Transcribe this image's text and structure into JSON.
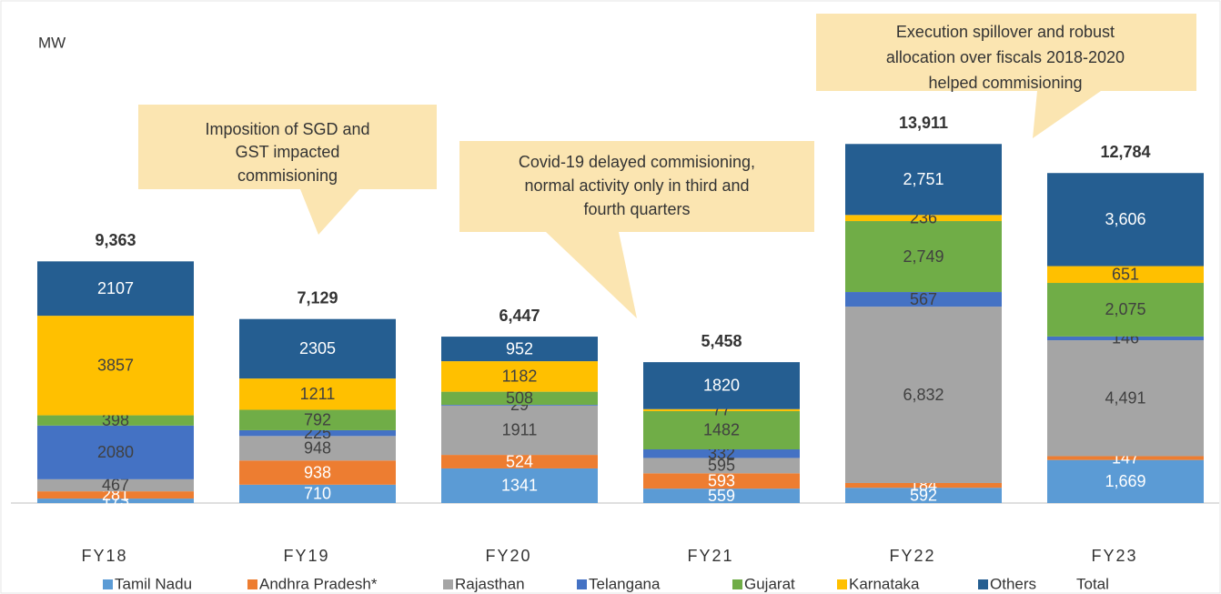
{
  "chart_data": {
    "type": "stacked_bar",
    "ylabel": "MW",
    "categories": [
      "FY18",
      "FY19",
      "FY20",
      "FY21",
      "FY22",
      "FY23"
    ],
    "ylim": [
      0,
      16000
    ],
    "series": [
      {
        "name": "Tamil Nadu",
        "color": "#5b9bd5",
        "values": [
          173,
          710,
          1341,
          559,
          592,
          1669
        ],
        "value_labels": [
          "173",
          "710",
          "1341",
          "559",
          "592",
          "1,669"
        ]
      },
      {
        "name": "Andhra Pradesh*",
        "color": "#ed7d31",
        "values": [
          281,
          938,
          524,
          593,
          184,
          147
        ],
        "value_labels": [
          "281",
          "938",
          "524",
          "593",
          "184",
          "147"
        ]
      },
      {
        "name": "Rajasthan",
        "color": "#a5a5a5",
        "values": [
          467,
          948,
          1911,
          595,
          6832,
          4491
        ],
        "value_labels": [
          "467",
          "948",
          "1911",
          "595",
          "6,832",
          "4,491"
        ]
      },
      {
        "name": "Telangana",
        "color": "#4472c4",
        "values": [
          2080,
          225,
          29,
          332,
          567,
          146
        ],
        "value_labels": [
          "2080",
          "225",
          "29",
          "332",
          "567",
          "146"
        ]
      },
      {
        "name": "Gujarat",
        "color": "#70ad47",
        "values": [
          398,
          792,
          508,
          1482,
          2749,
          2075
        ],
        "value_labels": [
          "398",
          "792",
          "508",
          "1482",
          "2,749",
          "2,075"
        ]
      },
      {
        "name": "Karnataka",
        "color": "#ffc000",
        "values": [
          3857,
          1211,
          1182,
          77,
          236,
          651
        ],
        "value_labels": [
          "3857",
          "1211",
          "1182",
          "77",
          "236",
          "651"
        ]
      },
      {
        "name": "Others",
        "color": "#255e91",
        "values": [
          2107,
          2305,
          952,
          1820,
          2751,
          3606
        ],
        "value_labels": [
          "2107",
          "2305",
          "952",
          "1820",
          "2,751",
          "3,606"
        ]
      },
      {
        "name": "Total",
        "values": [
          9363,
          7129,
          6447,
          5458,
          13911,
          12784
        ],
        "value_labels": [
          "9,363",
          "7,129",
          "6,447",
          "5,458",
          "13,911",
          "12,784"
        ]
      }
    ],
    "annotations": [
      {
        "lines": [
          "Imposition of SGD and",
          "GST impacted",
          "commisioning"
        ]
      },
      {
        "lines": [
          "Covid-19 delayed commisioning,",
          "normal activity only in third and",
          "fourth quarters"
        ]
      },
      {
        "lines": [
          "Execution spillover and robust",
          "allocation over fiscals 2018-2020",
          "helped commisioning"
        ]
      }
    ]
  }
}
